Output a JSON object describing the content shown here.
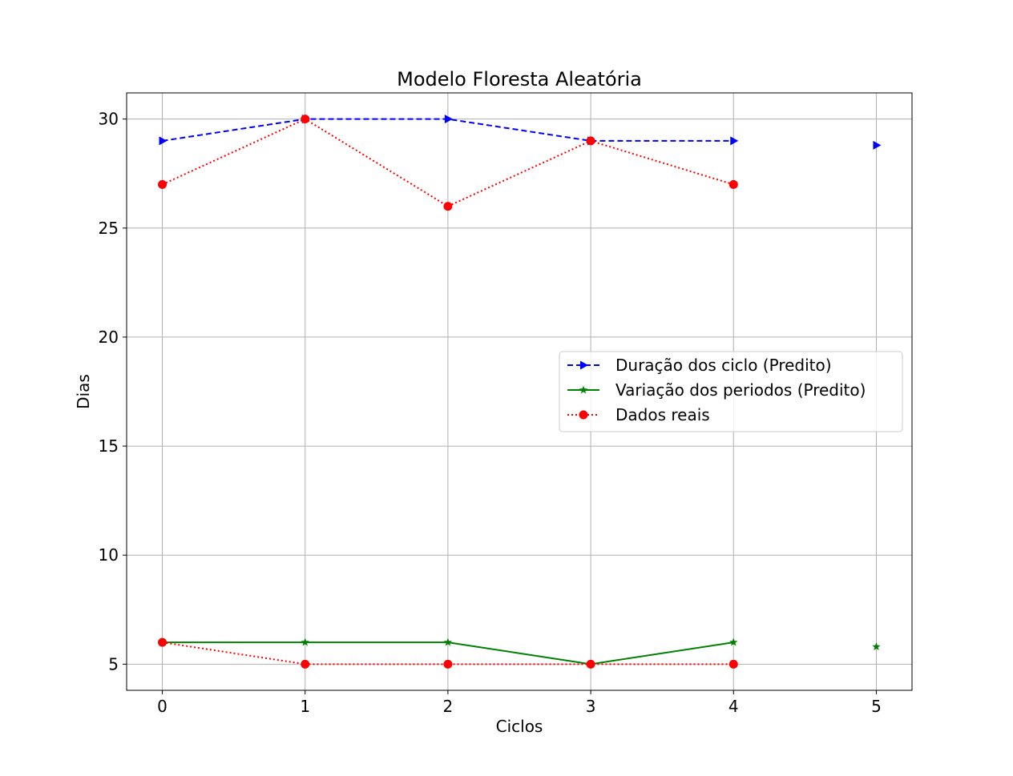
{
  "chart_data": {
    "type": "line",
    "title": "Modelo Floresta Aleatória",
    "xlabel": "Ciclos",
    "ylabel": "Dias",
    "xlim": [
      -0.25,
      5.25
    ],
    "ylim": [
      3.8,
      31.2
    ],
    "xticks": [
      0,
      1,
      2,
      3,
      4,
      5
    ],
    "yticks": [
      5,
      10,
      15,
      20,
      25,
      30
    ],
    "grid": true,
    "legend_position": "center-right",
    "series": [
      {
        "name": "Duração dos ciclo (Predito)",
        "color": "#0000ff",
        "linestyle": "dashed",
        "marker": "triangle-right",
        "x": [
          0,
          1,
          2,
          3,
          4
        ],
        "y": [
          29,
          30,
          30,
          29,
          29
        ]
      },
      {
        "name": "Variação dos periodos (Predito)",
        "color": "#008000",
        "linestyle": "solid",
        "marker": "star",
        "x": [
          0,
          1,
          2,
          3,
          4
        ],
        "y": [
          6,
          6,
          6,
          5,
          6
        ]
      },
      {
        "name": "Dados reais",
        "color": "#ff0000",
        "linestyle": "dotted",
        "marker": "circle",
        "x": [
          0,
          1,
          2,
          3,
          4
        ],
        "y": [
          27,
          30,
          26,
          29,
          27
        ]
      },
      {
        "color": "#ff0000",
        "linestyle": "dotted",
        "marker": "circle",
        "x": [
          0,
          1,
          2,
          3,
          4
        ],
        "y": [
          6,
          5,
          5,
          5,
          5
        ]
      },
      {
        "color": "#0000ff",
        "linestyle": "none",
        "marker": "triangle-right",
        "x": [
          5
        ],
        "y": [
          28.8
        ]
      },
      {
        "color": "#008000",
        "linestyle": "none",
        "marker": "star",
        "x": [
          5
        ],
        "y": [
          5.8
        ]
      }
    ]
  }
}
